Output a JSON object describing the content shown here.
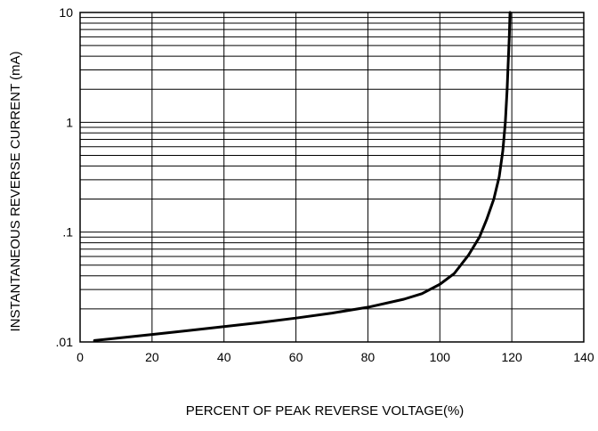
{
  "chart_data": {
    "type": "line",
    "title": "",
    "xlabel": "PERCENT OF PEAK REVERSE VOLTAGE(%)",
    "ylabel": "INSTANTANEOUS REVERSE CURRENT (mA)",
    "xlim": [
      0,
      140
    ],
    "ylim": [
      0.01,
      10
    ],
    "yscale": "log",
    "grid": true,
    "x_ticks": [
      0,
      20,
      40,
      60,
      80,
      100,
      120,
      140
    ],
    "x_tick_labels": [
      "0",
      "20",
      "40",
      "60",
      "80",
      "100",
      "120",
      "140"
    ],
    "y_ticks": [
      0.01,
      0.1,
      1,
      10
    ],
    "y_tick_labels": [
      ".01",
      ".1",
      "1",
      "10"
    ],
    "line_color": "#000000",
    "series": [
      {
        "name": "",
        "x": [
          4,
          10,
          20,
          30,
          40,
          50,
          60,
          70,
          80,
          90,
          95,
          100,
          104,
          108,
          111,
          113,
          115,
          116.5,
          117.5,
          118.2,
          118.7,
          119,
          119.3,
          119.5
        ],
        "y": [
          0.0103,
          0.0108,
          0.0117,
          0.0127,
          0.0138,
          0.015,
          0.0165,
          0.0183,
          0.0207,
          0.0245,
          0.0275,
          0.0335,
          0.042,
          0.062,
          0.09,
          0.13,
          0.2,
          0.32,
          0.55,
          1.0,
          2.0,
          3.5,
          6.0,
          10.0
        ]
      }
    ]
  }
}
